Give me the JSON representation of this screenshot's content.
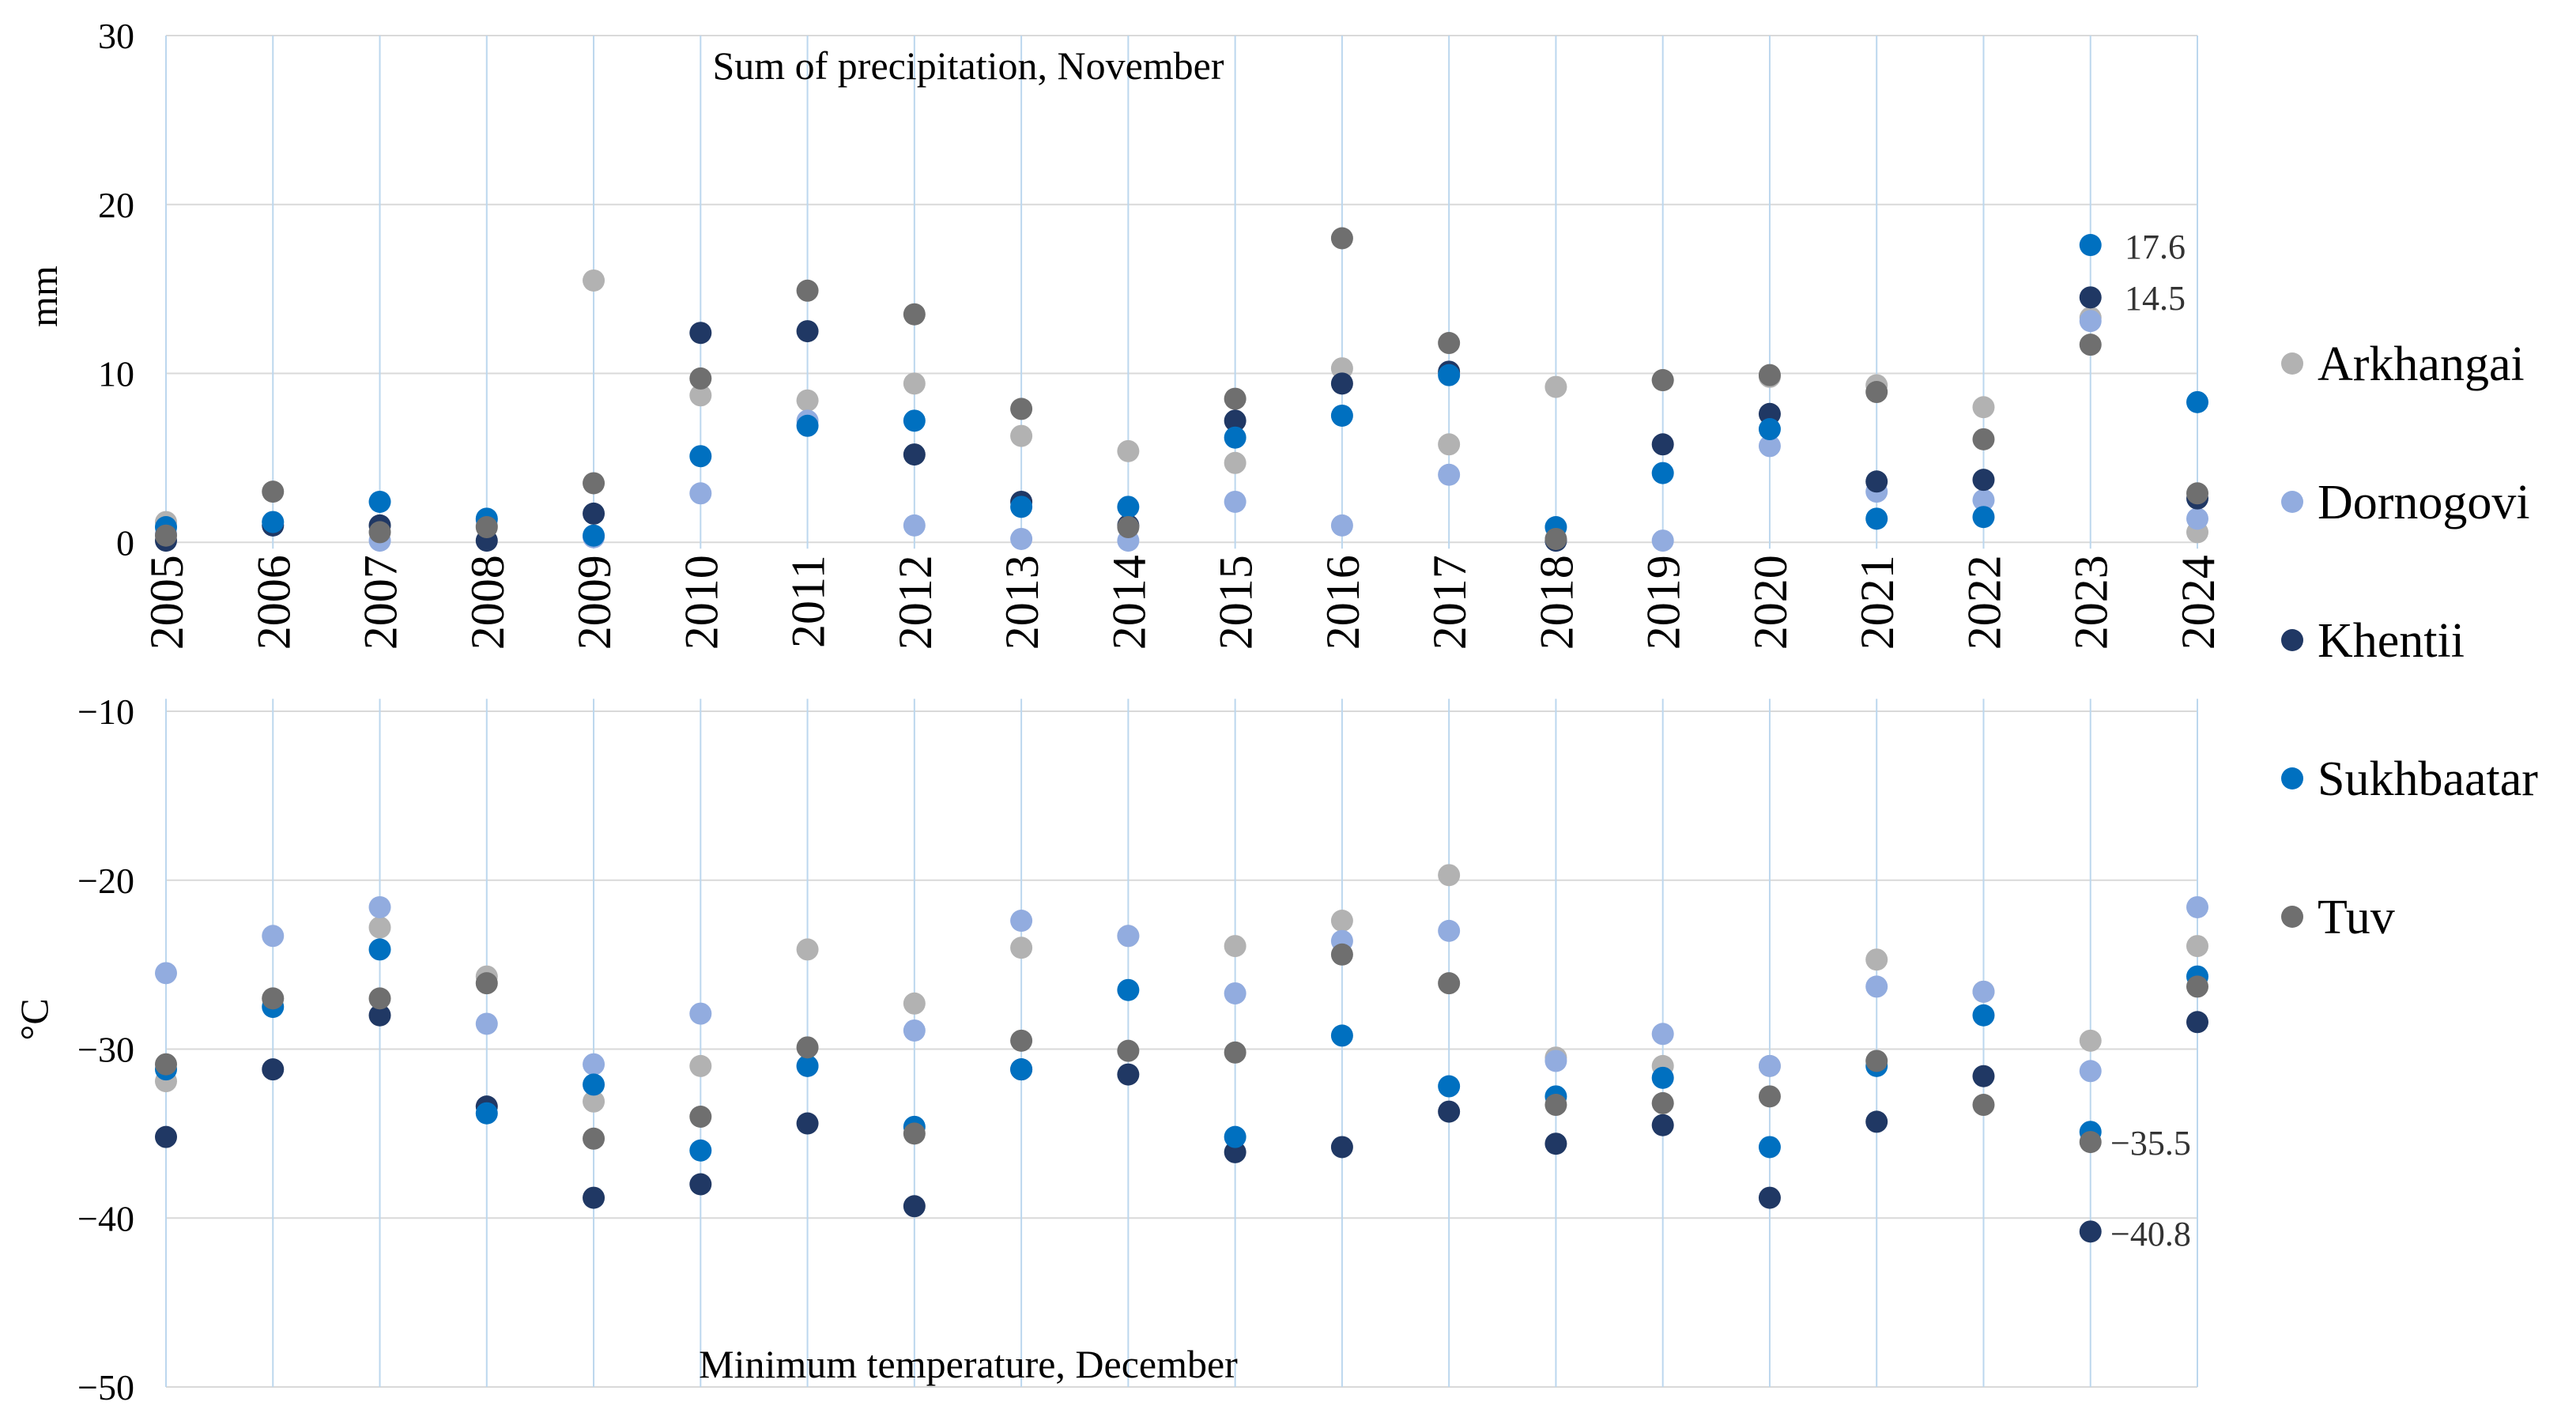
{
  "chart_data": {
    "type": "scatter",
    "ylabel_top": "mm",
    "ylabel_bottom": "°C",
    "title_top": "Sum of precipitation, November",
    "title_bottom": "Minimum temperature, December",
    "ylim": [
      -50,
      30
    ],
    "yticks": [
      30,
      20,
      10,
      0,
      -10,
      -20,
      -30,
      -40,
      -50
    ],
    "ytick_labels": [
      "30",
      "20",
      "10",
      "0",
      "−10",
      "−20",
      "−30",
      "−40",
      "−50"
    ],
    "x": [
      "2005",
      "2006",
      "2007",
      "2008",
      "2009",
      "2010",
      "2011",
      "2012",
      "2013",
      "2014",
      "2015",
      "2016",
      "2017",
      "2018",
      "2019",
      "2020",
      "2021",
      "2022",
      "2023",
      "2024"
    ],
    "colors": {
      "Arkhangai": "#b2b2b2",
      "Dornogovi": "#92acdf",
      "Khentii": "#203864",
      "Sukhbaatar": "#0070c0",
      "Tuv": "#6f6f6f"
    },
    "legend": [
      "Arkhangai",
      "Dornogovi",
      "Khentii",
      "Sukhbaatar",
      "Tuv"
    ],
    "precipitation_series": [
      {
        "name": "Arkhangai",
        "values": [
          1.2,
          1.2,
          1.0,
          1.0,
          15.5,
          8.7,
          8.4,
          9.4,
          6.3,
          5.4,
          4.7,
          10.3,
          5.8,
          9.2,
          9.6,
          9.8,
          9.3,
          8.0,
          13.3,
          0.6
        ]
      },
      {
        "name": "Dornogovi",
        "values": [
          0.5,
          1.0,
          0.1,
          1.3,
          0.3,
          2.9,
          7.2,
          1.0,
          0.2,
          0.1,
          2.4,
          1.0,
          4.0,
          0.1,
          0.1,
          5.7,
          3.0,
          2.5,
          13.1,
          1.4
        ]
      },
      {
        "name": "Khentii",
        "values": [
          0.1,
          1.0,
          1.0,
          0.1,
          1.7,
          12.4,
          12.5,
          5.2,
          2.4,
          1.0,
          7.2,
          9.4,
          10.1,
          0.1,
          5.8,
          7.6,
          3.6,
          3.7,
          14.5,
          2.6
        ]
      },
      {
        "name": "Sukhbaatar",
        "values": [
          0.9,
          1.2,
          2.4,
          1.4,
          0.4,
          5.1,
          6.9,
          7.2,
          2.1,
          2.1,
          6.2,
          7.5,
          9.9,
          0.9,
          4.1,
          6.7,
          1.4,
          1.5,
          17.6,
          8.3
        ]
      },
      {
        "name": "Tuv",
        "values": [
          0.4,
          3.0,
          0.6,
          0.9,
          3.5,
          9.7,
          14.9,
          13.5,
          7.9,
          0.9,
          8.5,
          18.0,
          11.8,
          0.2,
          9.6,
          9.9,
          8.9,
          6.1,
          11.7,
          2.9
        ]
      }
    ],
    "temperature_series": [
      {
        "name": "Arkhangai",
        "values": [
          -31.9,
          -27.0,
          -22.8,
          -25.7,
          -33.1,
          -31.0,
          -24.1,
          -27.3,
          -24.0,
          -23.3,
          -23.9,
          -22.4,
          -19.7,
          -30.5,
          -31.0,
          -31.0,
          -24.7,
          -26.6,
          -29.5,
          -23.9
        ]
      },
      {
        "name": "Dornogovi",
        "values": [
          -25.5,
          -23.3,
          -21.6,
          -28.5,
          -30.9,
          -27.9,
          -31.0,
          -28.9,
          -22.4,
          -23.3,
          -26.7,
          -23.6,
          -23.0,
          -30.7,
          -29.1,
          -31.0,
          -26.3,
          -26.6,
          -31.3,
          -21.6
        ]
      },
      {
        "name": "Khentii",
        "values": [
          -35.2,
          -31.2,
          -28.0,
          -33.4,
          -38.8,
          -38.0,
          -34.4,
          -39.3,
          -31.2,
          -31.5,
          -36.1,
          -35.8,
          -33.7,
          -35.6,
          -34.5,
          -38.8,
          -34.3,
          -31.6,
          -40.8,
          -28.4
        ]
      },
      {
        "name": "Sukhbaatar",
        "values": [
          -31.2,
          -27.5,
          -24.1,
          -33.8,
          -32.1,
          -36.0,
          -31.0,
          -34.6,
          -31.2,
          -26.5,
          -35.2,
          -29.2,
          -32.2,
          -32.8,
          -31.7,
          -35.8,
          -31.0,
          -28.0,
          -34.9,
          -25.7
        ]
      },
      {
        "name": "Tuv",
        "values": [
          -30.9,
          -27.0,
          -27.0,
          -26.1,
          -35.3,
          -34.0,
          -29.9,
          -35.0,
          -29.5,
          -30.1,
          -30.2,
          -24.4,
          -26.1,
          -33.3,
          -33.2,
          -32.8,
          -30.7,
          -33.3,
          -35.5,
          -26.3
        ]
      }
    ],
    "annotations": {
      "precip_max_sukhbaatar": "17.6",
      "precip_max_khentii": "14.5",
      "temp_min_tuv": "−35.5",
      "temp_min_khentii": "−40.8"
    }
  }
}
